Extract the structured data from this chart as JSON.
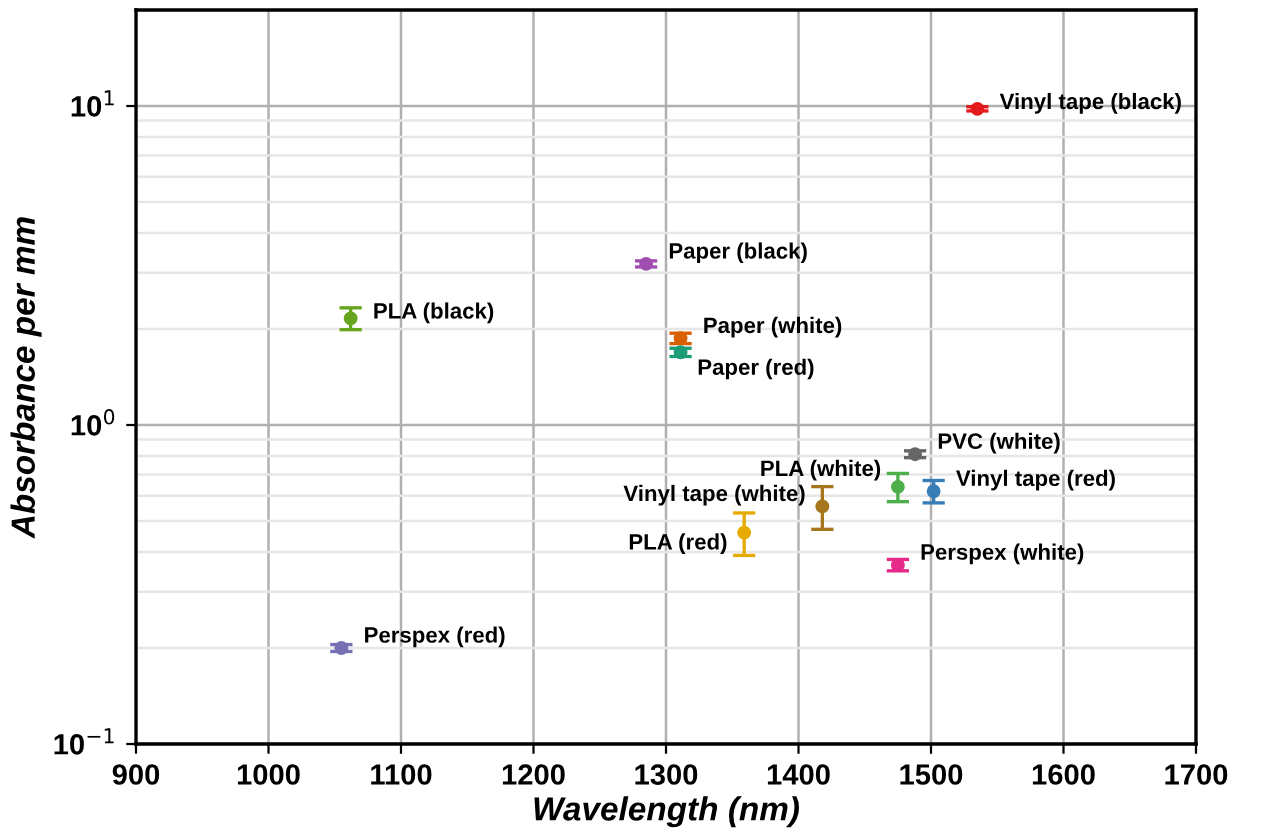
{
  "chart_data": {
    "type": "scatter",
    "xlabel": "Wavelength (nm)",
    "ylabel": "Absorbance per mm",
    "log": "y",
    "grid": true,
    "marker": "circle",
    "xlim": [
      900,
      1700
    ],
    "xticks": [
      900,
      1000,
      1100,
      1200,
      1300,
      1400,
      1500,
      1600,
      1700
    ],
    "ylim": [
      0.1,
      20
    ],
    "yticks": [
      {
        "value": 0.1,
        "label": "10$^{−1}$"
      },
      {
        "value": 1,
        "label": "10$^{0}$"
      },
      {
        "value": 10,
        "label": "10$^{1}$"
      }
    ],
    "series": [
      {
        "name": "Vinyl tape (black)",
        "color": "#e41a1c",
        "x": [
          1535
        ],
        "values": [
          9.8
        ],
        "errors": [
          0.15
        ]
      },
      {
        "name": "Paper (black)",
        "color": "#a04fb0",
        "x": [
          1285
        ],
        "values": [
          3.2
        ],
        "errors": [
          0.07
        ]
      },
      {
        "name": "PLA (black)",
        "color": "#66a61e",
        "x": [
          1062
        ],
        "values": [
          2.16
        ],
        "errors": [
          0.17
        ]
      },
      {
        "name": "Paper (white)",
        "color": "#d95f02",
        "x": [
          1311
        ],
        "values": [
          1.87
        ],
        "errors": [
          0.07
        ]
      },
      {
        "name": "Paper (red)",
        "color": "#1b9e77",
        "x": [
          1311
        ],
        "values": [
          1.69
        ],
        "errors": [
          0.05
        ]
      },
      {
        "name": "PVC (white)",
        "color": "#666666",
        "x": [
          1488
        ],
        "values": [
          0.81
        ],
        "errors": [
          0.02
        ]
      },
      {
        "name": "PLA (white)",
        "color": "#4daf4a",
        "x": [
          1475
        ],
        "values": [
          0.64
        ],
        "errors": [
          0.065
        ]
      },
      {
        "name": "Vinyl tape (red)",
        "color": "#377eb8",
        "x": [
          1502
        ],
        "values": [
          0.62
        ],
        "errors": [
          0.05
        ]
      },
      {
        "name": "Vinyl tape (white)",
        "color": "#a6761d",
        "x": [
          1418
        ],
        "values": [
          0.556
        ],
        "errors": [
          0.085
        ]
      },
      {
        "name": "PLA (red)",
        "color": "#e6ab02",
        "x": [
          1359
        ],
        "values": [
          0.46
        ],
        "errors": [
          0.07
        ]
      },
      {
        "name": "Perspex (white)",
        "color": "#e7298a",
        "x": [
          1475
        ],
        "values": [
          0.364
        ],
        "errors": [
          0.015
        ]
      },
      {
        "name": "Perspex (red)",
        "color": "#7570b3",
        "x": [
          1055
        ],
        "values": [
          0.2
        ],
        "errors": [
          0.005
        ]
      }
    ]
  }
}
